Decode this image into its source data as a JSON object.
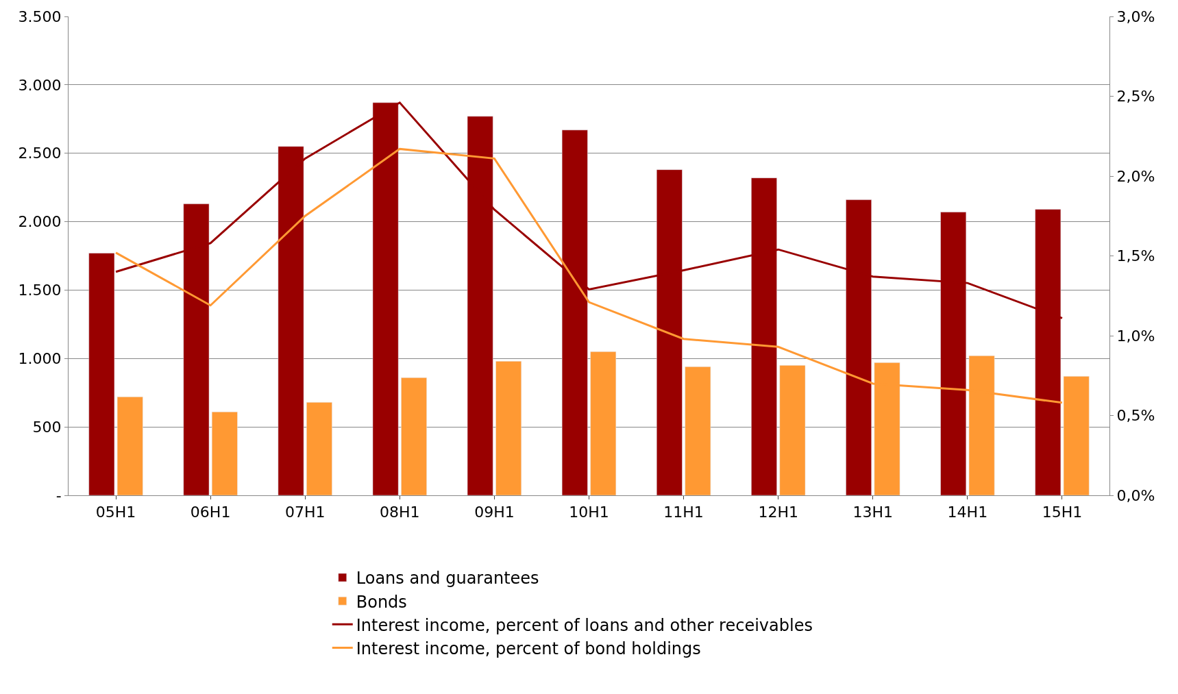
{
  "chart_data": {
    "type": "bar",
    "categories": [
      "05H1",
      "06H1",
      "07H1",
      "08H1",
      "09H1",
      "10H1",
      "11H1",
      "12H1",
      "13H1",
      "14H1",
      "15H1"
    ],
    "series": [
      {
        "name": "Loans and guarantees",
        "color": "#990000",
        "values": [
          1770,
          2130,
          2550,
          2870,
          2770,
          2670,
          2380,
          2320,
          2160,
          2070,
          2090
        ]
      },
      {
        "name": "Bonds",
        "color": "#ff9933",
        "values": [
          720,
          610,
          680,
          860,
          980,
          1050,
          940,
          950,
          970,
          1020,
          870
        ]
      },
      {
        "name": "Interest income, percent of loans and other receivables",
        "type": "line",
        "axis": "y2",
        "color": "#990000",
        "values": [
          1.4,
          1.58,
          2.11,
          2.46,
          1.79,
          1.29,
          1.41,
          1.54,
          1.37,
          1.33,
          1.11
        ]
      },
      {
        "name": "Interest income, percent of bond holdings",
        "type": "line",
        "axis": "y2",
        "color": "#ff9933",
        "values": [
          1.52,
          1.19,
          1.75,
          2.17,
          2.11,
          1.21,
          0.98,
          0.93,
          0.7,
          0.66,
          0.58
        ]
      }
    ],
    "ylim": [
      0,
      3500
    ],
    "yticks": [
      {
        "value": 0,
        "label": "-"
      },
      500,
      {
        "value": 1000,
        "label": "1.000"
      },
      {
        "value": 1500,
        "label": "1.500"
      },
      {
        "value": 2000,
        "label": "2.000"
      },
      {
        "value": 2500,
        "label": "2.500"
      },
      {
        "value": 3000,
        "label": "3.000"
      },
      {
        "value": 3500,
        "label": "3.500"
      }
    ],
    "y2lim": [
      0,
      3
    ],
    "y2ticks": [
      {
        "value": 0,
        "label": "0,0%"
      },
      {
        "value": 0.5,
        "label": "0,5%"
      },
      {
        "value": 1,
        "label": "1,0%"
      },
      {
        "value": 1.5,
        "label": "1,5%"
      },
      {
        "value": 2,
        "label": "2,0%"
      },
      {
        "value": 2.5,
        "label": "2,5%"
      },
      {
        "value": 3,
        "label": "3,0%"
      }
    ],
    "grid": "y",
    "legend": "bottom",
    "marker": "none",
    "line_style": "solid"
  }
}
